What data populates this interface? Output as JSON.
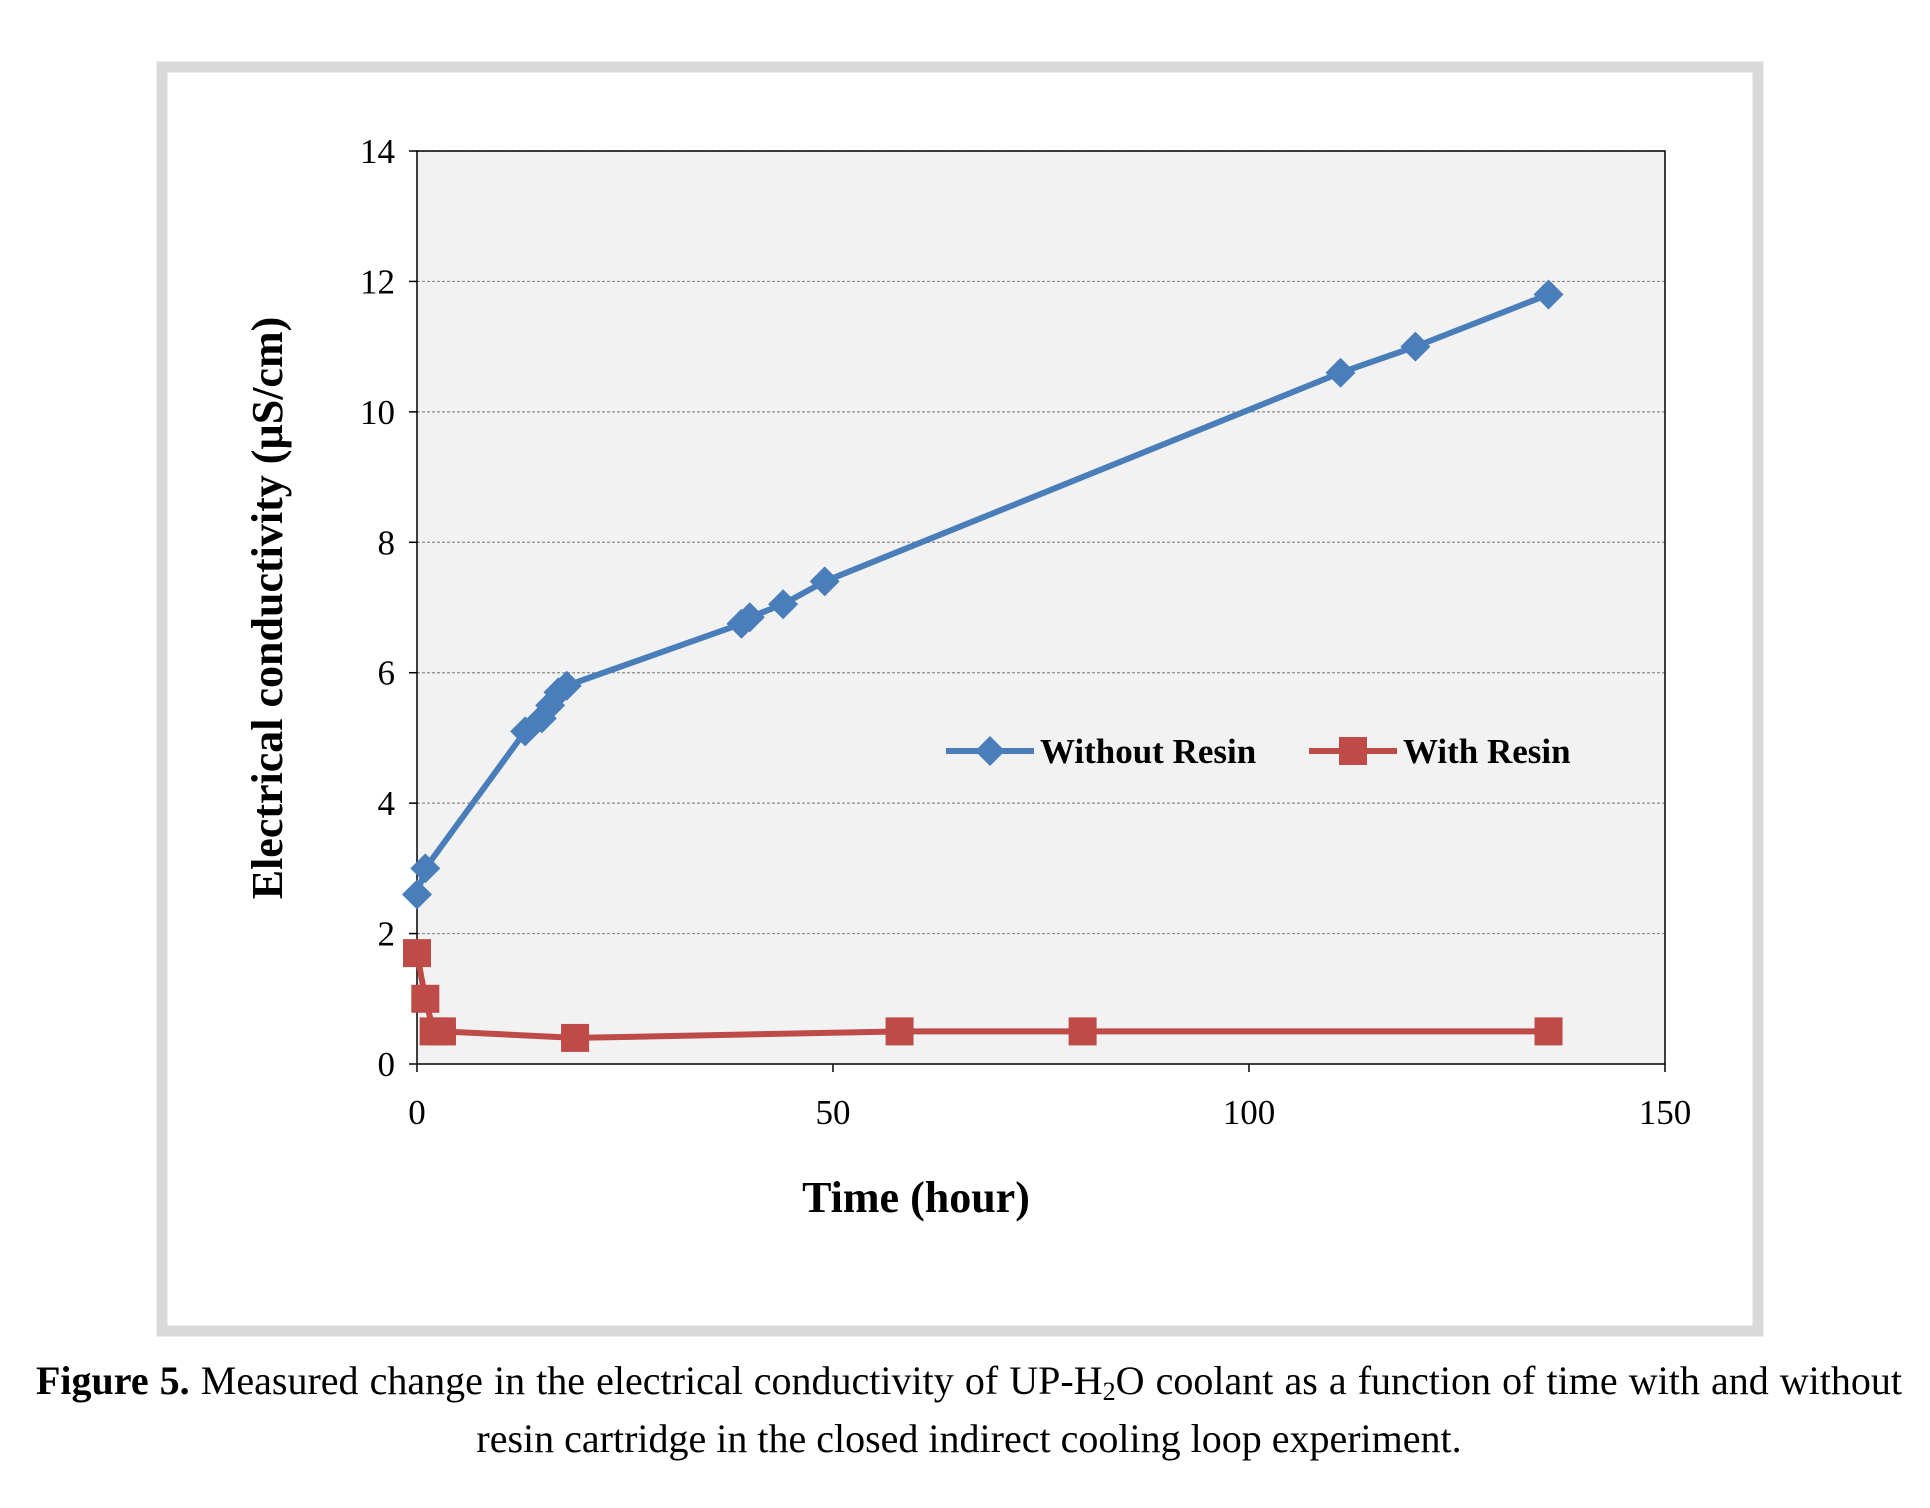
{
  "chart_data": {
    "type": "line",
    "xlabel": "Time (hour)",
    "ylabel": "Electrical conductivity (µS/cm)",
    "xlim": [
      0,
      150
    ],
    "xticks": [
      0,
      50,
      100,
      150
    ],
    "ylim": [
      0,
      14
    ],
    "yticks": [
      0,
      2,
      4,
      6,
      8,
      10,
      12,
      14
    ],
    "grid": true,
    "legend": "right",
    "series": [
      {
        "name": "Without Resin",
        "color": "#4a7ebb",
        "marker": "diamond",
        "x": [
          0,
          1,
          13,
          15,
          16,
          17,
          18,
          39,
          40,
          44,
          49,
          111,
          120,
          136
        ],
        "values": [
          2.6,
          3.0,
          5.1,
          5.3,
          5.5,
          5.7,
          5.8,
          6.75,
          6.85,
          7.05,
          7.4,
          10.6,
          11.0,
          11.8
        ]
      },
      {
        "name": "With Resin",
        "color": "#be4b48",
        "marker": "square",
        "x": [
          0,
          1,
          2,
          3,
          19,
          58,
          80,
          136
        ],
        "values": [
          1.7,
          1.0,
          0.5,
          0.5,
          0.4,
          0.5,
          0.5,
          0.5
        ]
      }
    ]
  },
  "caption": {
    "label": "Figure 5.",
    "text_before": "Measured change in the electrical conductivity of UP-H",
    "subscript": "2",
    "text_after": "O coolant as a function of time with and without resin cartridge in the closed indirect cooling loop experiment."
  }
}
